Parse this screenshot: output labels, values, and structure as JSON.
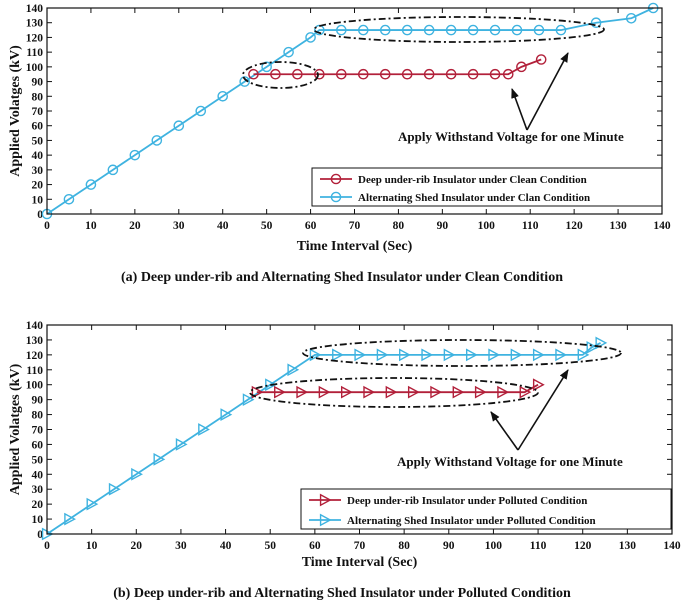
{
  "colors": {
    "red": "#b2203a",
    "blue": "#3fb3e0",
    "axis": "#111111"
  },
  "chart_data": [
    {
      "type": "line",
      "caption": "(a) Deep under-rib and Alternating Shed Insulator under Clean Condition",
      "xlabel": "Time Interval (Sec)",
      "ylabel": "Applied Volatges (kV)",
      "xlim": [
        0,
        140
      ],
      "ylim": [
        0,
        140
      ],
      "xticks": [
        0,
        10,
        20,
        30,
        40,
        50,
        60,
        70,
        80,
        90,
        100,
        110,
        120,
        130,
        140
      ],
      "yticks": [
        0,
        10,
        20,
        30,
        40,
        50,
        60,
        70,
        80,
        90,
        100,
        110,
        120,
        130,
        140
      ],
      "grid": false,
      "legend_position": "bottom-right",
      "marker": "circle",
      "annotation": "Apply Withstand Voltage for one Minute",
      "series": [
        {
          "name": "Deep under-rib Insulator under Clean Condition",
          "color": "red",
          "x": [
            47,
            52,
            57,
            62,
            67,
            72,
            77,
            82,
            87,
            92,
            97,
            102,
            105,
            108,
            112.5
          ],
          "y": [
            95,
            95,
            95,
            95,
            95,
            95,
            95,
            95,
            95,
            95,
            95,
            95,
            95,
            100,
            105
          ]
        },
        {
          "name": "Alternating Shed Insulator under Clan Condition",
          "color": "blue",
          "x": [
            0,
            5,
            10,
            15,
            20,
            25,
            30,
            35,
            40,
            45,
            50,
            55,
            60,
            62,
            67,
            72,
            77,
            82,
            87,
            92,
            97,
            102,
            107,
            112,
            117,
            125,
            133,
            138
          ],
          "y": [
            0,
            10,
            20,
            30,
            40,
            50,
            60,
            70,
            80,
            90,
            100,
            110,
            120,
            125,
            125,
            125,
            125,
            125,
            125,
            125,
            125,
            125,
            125,
            125,
            125,
            130,
            133,
            140
          ]
        }
      ]
    },
    {
      "type": "line",
      "caption": "(b) Deep under-rib and Alternating Shed Insulator under Polluted Condition",
      "xlabel": "Time Interval (Sec)",
      "ylabel": "Applied Volatges (kV)",
      "xlim": [
        0,
        140
      ],
      "ylim": [
        0,
        140
      ],
      "xticks": [
        0,
        10,
        20,
        30,
        40,
        50,
        60,
        70,
        80,
        90,
        100,
        110,
        120,
        130,
        140
      ],
      "yticks": [
        0,
        10,
        20,
        30,
        40,
        50,
        60,
        70,
        80,
        90,
        100,
        110,
        120,
        130,
        140
      ],
      "grid": false,
      "legend_position": "bottom-right",
      "marker": "triangle-right",
      "annotation": "Apply Withstand Voltage for one Minute",
      "series": [
        {
          "name": "Deep under-rib Insulator under Polluted Condition",
          "color": "red",
          "x": [
            47,
            52,
            57,
            62,
            67,
            72,
            77,
            82,
            87,
            92,
            97,
            102,
            107,
            110
          ],
          "y": [
            95,
            95,
            95,
            95,
            95,
            95,
            95,
            95,
            95,
            95,
            95,
            95,
            95,
            100
          ]
        },
        {
          "name": "Alternating Shed Insulator under Polluted Condition",
          "color": "blue",
          "x": [
            0,
            5,
            10,
            15,
            20,
            25,
            30,
            35,
            40,
            45,
            50,
            55,
            60,
            65,
            70,
            75,
            80,
            85,
            90,
            95,
            100,
            105,
            110,
            115,
            120,
            122,
            124
          ],
          "y": [
            0,
            10,
            20,
            30,
            40,
            50,
            60,
            70,
            80,
            90,
            100,
            110,
            120,
            120,
            120,
            120,
            120,
            120,
            120,
            120,
            120,
            120,
            120,
            120,
            120,
            125,
            128
          ]
        }
      ]
    }
  ]
}
